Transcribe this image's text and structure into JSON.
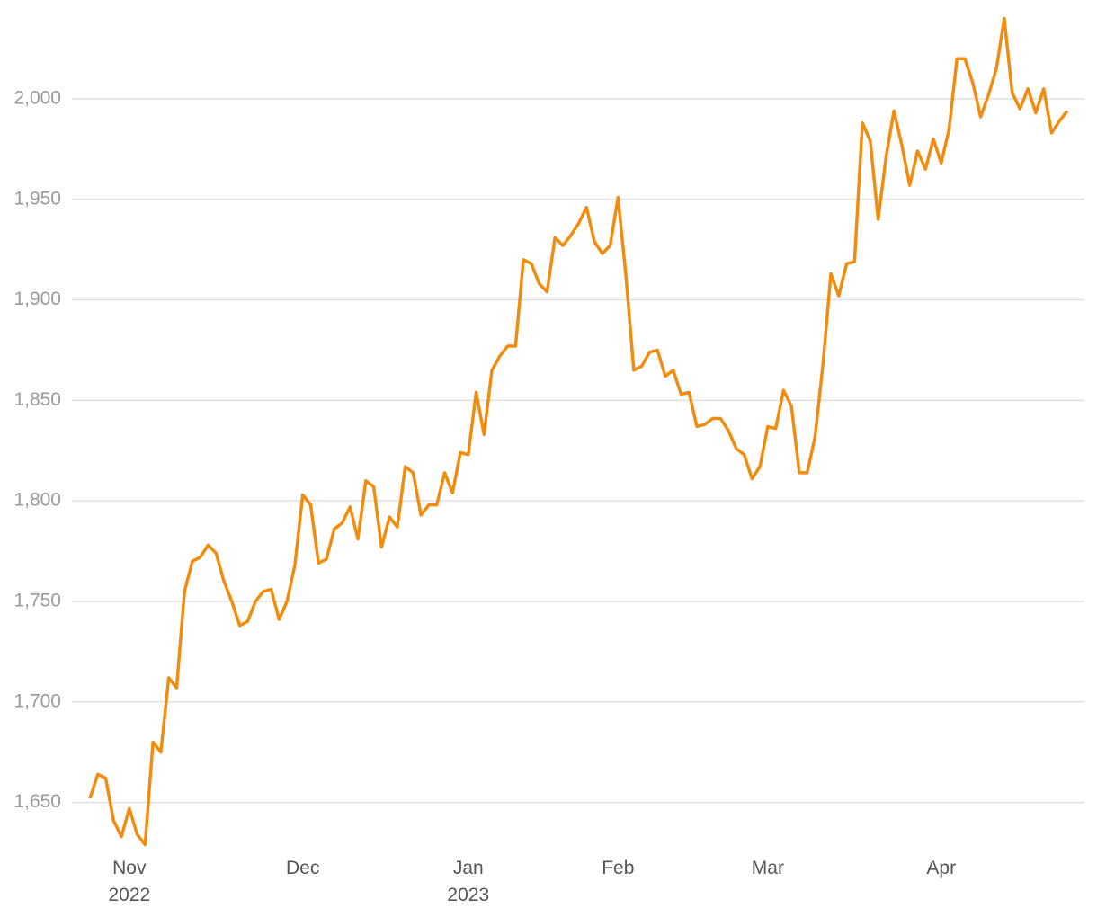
{
  "chart_data": {
    "type": "line",
    "categories": [
      null,
      null,
      null,
      null,
      null,
      "Nov\n2022",
      null,
      null,
      null,
      null,
      null,
      null,
      null,
      null,
      null,
      null,
      null,
      null,
      null,
      null,
      null,
      null,
      null,
      null,
      null,
      null,
      null,
      "Dec",
      null,
      null,
      null,
      null,
      null,
      null,
      null,
      null,
      null,
      null,
      null,
      null,
      null,
      null,
      null,
      null,
      null,
      null,
      null,
      null,
      "Jan\n2023",
      null,
      null,
      null,
      null,
      null,
      null,
      null,
      null,
      null,
      null,
      null,
      null,
      null,
      null,
      null,
      null,
      null,
      null,
      "Feb",
      null,
      null,
      null,
      null,
      null,
      null,
      null,
      null,
      null,
      null,
      null,
      null,
      null,
      null,
      null,
      null,
      null,
      null,
      "Mar",
      null,
      null,
      null,
      null,
      null,
      null,
      null,
      null,
      null,
      null,
      null,
      null,
      null,
      null,
      null,
      null,
      null,
      null,
      null,
      null,
      null,
      "Apr",
      null,
      null,
      null,
      null,
      null,
      null,
      null,
      null,
      null,
      null,
      null,
      null,
      null,
      null,
      null,
      null
    ],
    "values": [
      1652,
      1664,
      1662,
      1641,
      1633,
      1647,
      1634,
      1629,
      1680,
      1675,
      1712,
      1707,
      1755,
      1770,
      1772,
      1778,
      1774,
      1760,
      1750,
      1738,
      1740,
      1750,
      1755,
      1756,
      1741,
      1750,
      1768,
      1803,
      1798,
      1769,
      1771,
      1786,
      1789,
      1797,
      1781,
      1810,
      1807,
      1777,
      1792,
      1787,
      1817,
      1814,
      1793,
      1798,
      1798,
      1814,
      1804,
      1824,
      1823,
      1854,
      1833,
      1865,
      1872,
      1877,
      1877,
      1920,
      1918,
      1908,
      1904,
      1931,
      1927,
      1932,
      1938,
      1946,
      1929,
      1923,
      1927,
      1951,
      1912,
      1865,
      1867,
      1874,
      1875,
      1862,
      1865,
      1853,
      1854,
      1837,
      1838,
      1841,
      1841,
      1835,
      1826,
      1823,
      1811,
      1817,
      1837,
      1836,
      1855,
      1847,
      1814,
      1814,
      1832,
      1868,
      1913,
      1902,
      1918,
      1919,
      1988,
      1979,
      1940,
      1971,
      1994,
      1977,
      1957,
      1974,
      1965,
      1980,
      1968,
      1985,
      2020,
      2020,
      2008,
      1991,
      2002,
      2015,
      2040,
      2003,
      1995,
      2005,
      1993,
      2005,
      1983,
      1989,
      1994
    ],
    "color": "#f28c0f",
    "ylim": [
      1627,
      2042
    ],
    "yticks": [
      {
        "value": 1650,
        "label": "1,650"
      },
      {
        "value": 1700,
        "label": "1,700"
      },
      {
        "value": 1750,
        "label": "1,750"
      },
      {
        "value": 1800,
        "label": "1,800"
      },
      {
        "value": 1850,
        "label": "1,850"
      },
      {
        "value": 1900,
        "label": "1,900"
      },
      {
        "value": 1950,
        "label": "1,950"
      },
      {
        "value": 2000,
        "label": "2,000"
      }
    ],
    "grid": true
  }
}
